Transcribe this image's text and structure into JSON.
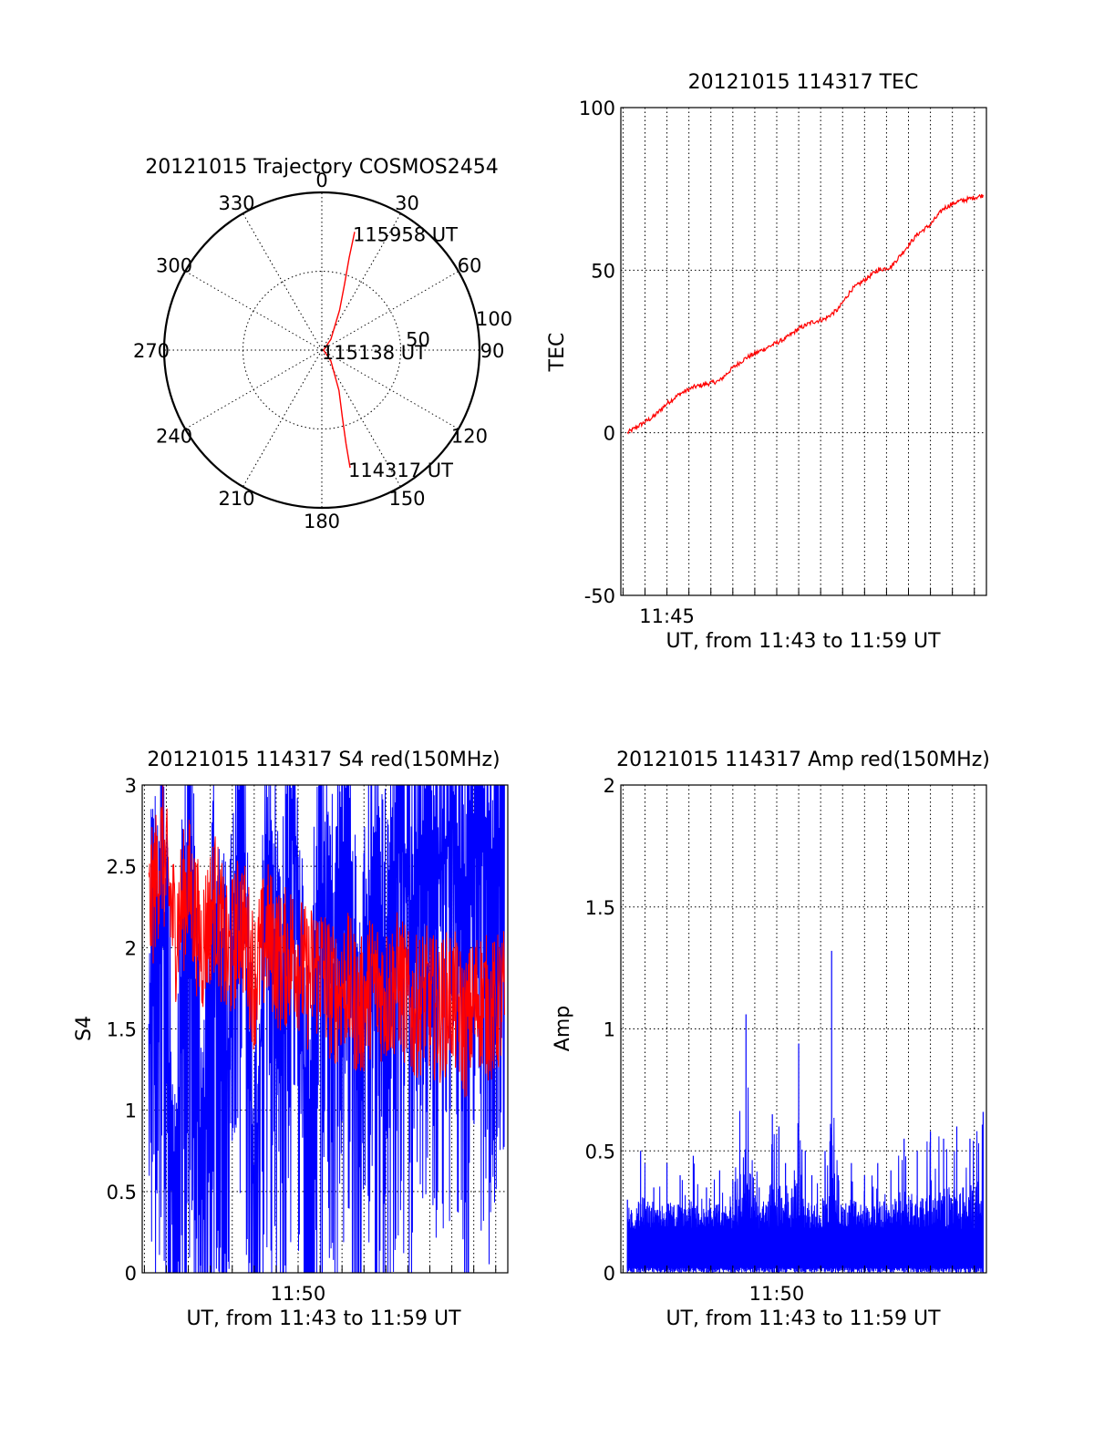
{
  "colors": {
    "red_series": "#ff0000",
    "blue_series": "#0000ff",
    "axes": "#000000",
    "background": "#ffffff"
  },
  "chart_data": [
    {
      "type": "polar",
      "title": "20121015 Trajectory COSMOS2454",
      "angle_labels": [
        "0",
        "30",
        "60",
        "90",
        "120",
        "150",
        "180",
        "210",
        "240",
        "270",
        "300",
        "330"
      ],
      "angles": [
        0,
        30,
        60,
        90,
        120,
        150,
        180,
        210,
        240,
        270,
        300,
        330
      ],
      "radial_labels": [
        "50",
        "100"
      ],
      "radial_values": [
        50,
        100
      ],
      "series": [
        {
          "color": "#ff0000",
          "points": [
            {
              "az": 15.5,
              "el": 20
            },
            {
              "az": 16.5,
              "el": 35
            },
            {
              "az": 19,
              "el": 50
            },
            {
              "az": 24,
              "el": 65
            },
            {
              "az": 40,
              "el": 82
            },
            {
              "az": 90,
              "el": 89
            },
            {
              "az": 140,
              "el": 82
            },
            {
              "az": 157,
              "el": 65
            },
            {
              "az": 163,
              "el": 50
            },
            {
              "az": 165.5,
              "el": 35
            },
            {
              "az": 166.5,
              "el": 21
            }
          ]
        }
      ],
      "annotations": [
        {
          "text": "115958 UT",
          "az": 15.5,
          "el": 20
        },
        {
          "text": "115138 UT",
          "az": 90,
          "el": 89
        },
        {
          "text": "114317 UT",
          "az": 166.5,
          "el": 21
        }
      ]
    },
    {
      "type": "line",
      "title": "20121015 114317 TEC",
      "xlabel": "UT, from 11:43 to 11:59 UT",
      "ylabel": "TEC",
      "xlim": [
        11.715,
        11.9925
      ],
      "ylim": [
        -50,
        100
      ],
      "y_ticks": [
        -50,
        0,
        50,
        100
      ],
      "x_tick_labels": [
        {
          "label": "11:45",
          "x": 11.75
        }
      ],
      "grid": true,
      "series": [
        {
          "color": "#ff0000",
          "x": [
            11.72,
            11.74,
            11.75,
            11.76,
            11.77,
            11.78,
            11.79,
            11.8,
            11.81,
            11.82,
            11.83,
            11.84,
            11.85,
            11.86,
            11.87,
            11.88,
            11.89,
            11.9,
            11.91,
            11.92,
            11.93,
            11.94,
            11.95,
            11.96,
            11.97,
            11.98,
            11.99
          ],
          "y": [
            0,
            5,
            9,
            12,
            14,
            15,
            16,
            20,
            23,
            25,
            27,
            29,
            32,
            34,
            35,
            38,
            44,
            47,
            50,
            51,
            56,
            61,
            64,
            69,
            71,
            72,
            73
          ]
        }
      ]
    },
    {
      "type": "line",
      "title": "20121015 114317 S4 red(150MHz)",
      "xlabel": "UT, from 11:43 to 11:59 UT",
      "ylabel": "S4",
      "xlim": [
        11.715,
        11.9925
      ],
      "ylim": [
        0,
        3
      ],
      "y_ticks": [
        0,
        0.5,
        1,
        1.5,
        2,
        2.5,
        3
      ],
      "x_tick_labels": [
        {
          "label": "11:50",
          "x": 11.8333
        }
      ],
      "grid": true,
      "series": [
        {
          "color": "#0000ff",
          "x": [
            11.72,
            11.73,
            11.74,
            11.75,
            11.76,
            11.77,
            11.78,
            11.79,
            11.8,
            11.81,
            11.82,
            11.83,
            11.84,
            11.85,
            11.86,
            11.87,
            11.88,
            11.89,
            11.9,
            11.91,
            11.92,
            11.93,
            11.94,
            11.95,
            11.96,
            11.97,
            11.98,
            11.99
          ],
          "y": [
            1.5,
            2.5,
            0.3,
            2.8,
            0.6,
            2.2,
            1.3,
            2.9,
            0.4,
            2.6,
            1.6,
            2.9,
            0.7,
            2.4,
            1.8,
            2.8,
            1.1,
            2.5,
            1.9,
            2.8,
            2.2,
            2.9,
            2.5,
            2.8,
            2.3,
            2.9,
            2.6,
            2.8
          ]
        },
        {
          "color": "#ff0000",
          "x": [
            11.72,
            11.73,
            11.74,
            11.75,
            11.76,
            11.77,
            11.78,
            11.79,
            11.8,
            11.81,
            11.82,
            11.83,
            11.84,
            11.85,
            11.86,
            11.87,
            11.88,
            11.89,
            11.9,
            11.91,
            11.92,
            11.93,
            11.94,
            11.95,
            11.96,
            11.97,
            11.98,
            11.99
          ],
          "y": [
            2.2,
            2.6,
            2.1,
            2.4,
            2.0,
            2.3,
            1.9,
            2.2,
            1.8,
            2.1,
            1.9,
            2.0,
            1.8,
            1.9,
            1.7,
            1.8,
            1.6,
            1.8,
            1.7,
            1.8,
            1.6,
            1.7,
            1.6,
            1.7,
            1.5,
            1.7,
            1.6,
            1.7
          ]
        }
      ]
    },
    {
      "type": "line",
      "title": "20121015 114317 Amp red(150MHz)",
      "xlabel": "UT, from 11:43 to 11:59 UT",
      "ylabel": "Amp",
      "xlim": [
        11.715,
        11.9925
      ],
      "ylim": [
        0,
        2
      ],
      "y_ticks": [
        0,
        0.5,
        1,
        1.5,
        2
      ],
      "x_tick_labels": [
        {
          "label": "11:50",
          "x": 11.8333
        }
      ],
      "grid": true,
      "series": [
        {
          "color": "#0000ff",
          "x": [
            11.72,
            11.73,
            11.74,
            11.75,
            11.76,
            11.77,
            11.78,
            11.79,
            11.8,
            11.81,
            11.82,
            11.83,
            11.835,
            11.84,
            11.85,
            11.855,
            11.86,
            11.87,
            11.875,
            11.88,
            11.89,
            11.9,
            11.91,
            11.92,
            11.93,
            11.94,
            11.95,
            11.96,
            11.97,
            11.98,
            11.99
          ],
          "y": [
            0.3,
            0.5,
            0.35,
            0.45,
            0.4,
            0.48,
            0.35,
            0.42,
            0.38,
            1.06,
            0.35,
            0.65,
            0.6,
            0.45,
            0.94,
            0.5,
            0.4,
            0.5,
            1.32,
            0.4,
            0.45,
            0.4,
            0.45,
            0.42,
            0.55,
            0.5,
            0.58,
            0.55,
            0.6,
            0.55,
            0.66
          ]
        }
      ]
    }
  ]
}
